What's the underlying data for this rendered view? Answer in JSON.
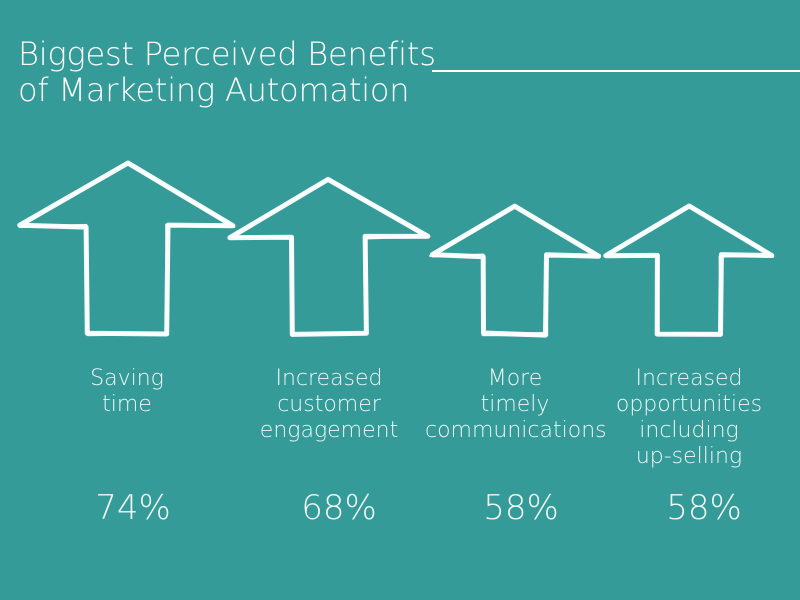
{
  "title_lines": [
    "Biggest Perceived Benefits",
    "of Marketing Automation"
  ],
  "colors": {
    "background": "#349b98",
    "foreground": "#ffffff"
  },
  "chart_data": {
    "type": "bar",
    "style": "hand-drawn up arrows sized by value",
    "categories": [
      [
        "Saving",
        "time"
      ],
      [
        "Increased",
        "customer",
        "engagement"
      ],
      [
        "More",
        "timely",
        "communications"
      ],
      [
        "Increased",
        "opportunities",
        "including",
        "up-selling"
      ]
    ],
    "values": [
      74,
      68,
      58,
      58
    ],
    "value_labels": [
      "74%",
      "68%",
      "58%",
      "58%"
    ],
    "unit": "%"
  }
}
